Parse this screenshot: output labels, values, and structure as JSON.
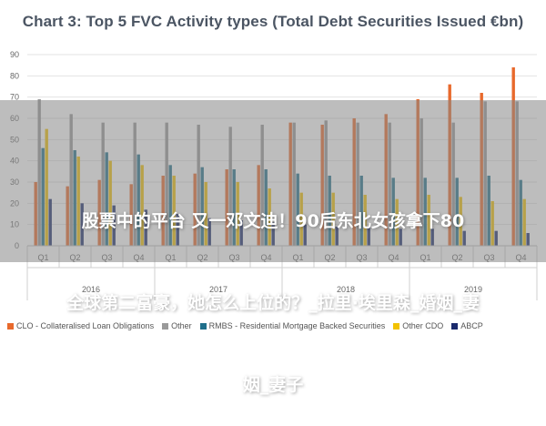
{
  "chart_data": {
    "type": "bar",
    "title": "Chart 3: Top 5 FVC Activity types (Total Debt Securities Issued €bn)",
    "xlabel": "",
    "ylabel": "",
    "ylim": [
      0,
      90
    ],
    "yticks": [
      0,
      10,
      20,
      30,
      40,
      50,
      60,
      70,
      80,
      90
    ],
    "grid": true,
    "legend_position": "bottom",
    "categories": [
      "Q1",
      "Q2",
      "Q3",
      "Q4",
      "Q1",
      "Q2",
      "Q3",
      "Q4",
      "Q1",
      "Q2",
      "Q3",
      "Q4",
      "Q1",
      "Q2",
      "Q3",
      "Q4"
    ],
    "groups": [
      {
        "label": "2016",
        "span": [
          0,
          3
        ]
      },
      {
        "label": "2017",
        "span": [
          4,
          7
        ]
      },
      {
        "label": "2018",
        "span": [
          8,
          11
        ]
      },
      {
        "label": "2019",
        "span": [
          12,
          15
        ]
      }
    ],
    "series": [
      {
        "name": "CLO - Collateralised Loan Obligations",
        "color": "#e8692c",
        "values": [
          30,
          28,
          31,
          29,
          33,
          34,
          36,
          38,
          58,
          57,
          60,
          62,
          69,
          76,
          72,
          84
        ]
      },
      {
        "name": "Other",
        "color": "#9a9a9a",
        "values": [
          69,
          62,
          58,
          58,
          58,
          57,
          56,
          57,
          58,
          59,
          58,
          58,
          60,
          58,
          68,
          68
        ]
      },
      {
        "name": "RMBS - Residential Mortgage Backed Securities",
        "color": "#1f6f8b",
        "values": [
          46,
          45,
          44,
          43,
          38,
          37,
          36,
          36,
          34,
          33,
          33,
          32,
          32,
          32,
          33,
          31
        ]
      },
      {
        "name": "Other CDO",
        "color": "#f2c200",
        "values": [
          55,
          42,
          40,
          38,
          33,
          30,
          30,
          27,
          25,
          25,
          24,
          22,
          24,
          23,
          21,
          22
        ]
      },
      {
        "name": "ABCP",
        "color": "#1a2a6c",
        "values": [
          22,
          20,
          19,
          17,
          15,
          13,
          12,
          11,
          10,
          9,
          9,
          8,
          8,
          7,
          7,
          6
        ]
      }
    ]
  },
  "overlay": {
    "lines": [
      "股票中的平台 又一邓文迪！90后东北女孩拿下80",
      "全球第二富豪，她怎么上位的？_拉里·埃里森_婚姻_妻",
      "姻_妻子"
    ]
  }
}
